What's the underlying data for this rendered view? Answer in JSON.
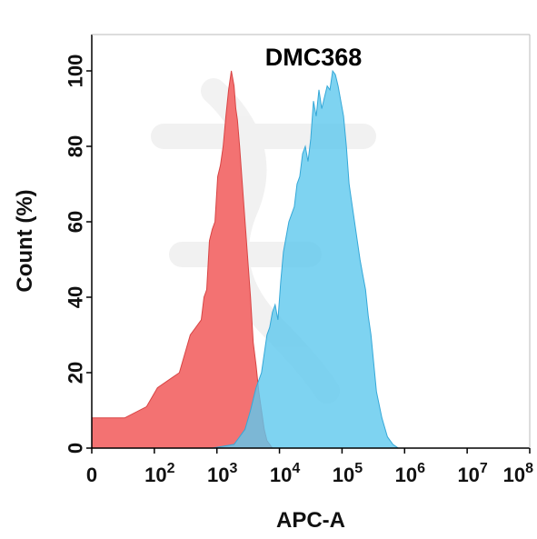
{
  "chart_data": {
    "type": "area",
    "title": "DMC368",
    "xlabel": "APC-A",
    "ylabel": "Count  (%)",
    "x_scale": "biexponential",
    "xlim_decades": [
      0,
      8
    ],
    "ylim": [
      0,
      100
    ],
    "grid": false,
    "legend": "none",
    "x_ticks": [
      {
        "base": "0",
        "exp": ""
      },
      {
        "base": "10",
        "exp": "2"
      },
      {
        "base": "10",
        "exp": "3"
      },
      {
        "base": "10",
        "exp": "4"
      },
      {
        "base": "10",
        "exp": "5"
      },
      {
        "base": "10",
        "exp": "6"
      },
      {
        "base": "10",
        "exp": "7"
      },
      {
        "base": "10",
        "exp": "8"
      }
    ],
    "y_ticks": [
      "0",
      "20",
      "40",
      "60",
      "80",
      "100"
    ],
    "series": [
      {
        "color": "#f26a6a",
        "stroke": "#d84444",
        "x_log10": [
          0.0,
          0.6,
          1.0,
          1.2,
          1.4,
          1.6,
          1.8,
          1.9,
          2.0,
          2.05,
          2.1,
          2.15,
          2.2,
          2.25,
          2.3,
          2.35,
          2.4,
          2.45,
          2.5,
          2.55,
          2.6,
          2.63,
          2.66,
          2.7,
          2.75,
          2.8,
          2.85,
          2.9,
          2.95,
          3.0,
          3.05,
          3.1,
          3.15,
          3.2,
          3.3
        ],
        "y": [
          8,
          8,
          11,
          16,
          18,
          20,
          30,
          32,
          34,
          40,
          42,
          55,
          58,
          60,
          72,
          75,
          80,
          88,
          95,
          100,
          96,
          90,
          87,
          80,
          70,
          60,
          50,
          40,
          28,
          22,
          15,
          10,
          5,
          2,
          0
        ]
      },
      {
        "color": "#5ec8ee",
        "stroke": "#35a8d8",
        "x_log10": [
          2.2,
          2.6,
          2.8,
          2.9,
          3.0,
          3.1,
          3.2,
          3.25,
          3.3,
          3.35,
          3.4,
          3.45,
          3.5,
          3.55,
          3.6,
          3.65,
          3.7,
          3.75,
          3.8,
          3.85,
          3.9,
          3.95,
          4.0,
          4.05,
          4.1,
          4.15,
          4.2,
          4.25,
          4.3,
          4.35,
          4.4,
          4.45,
          4.5,
          4.55,
          4.6,
          4.65,
          4.7,
          4.75,
          4.8,
          4.85,
          4.9,
          4.95,
          5.0,
          5.05,
          5.1,
          5.2,
          5.3,
          5.4,
          5.5,
          5.6
        ],
        "y": [
          0,
          1,
          5,
          10,
          16,
          20,
          30,
          32,
          36,
          38,
          34,
          44,
          52,
          56,
          60,
          62,
          64,
          70,
          72,
          78,
          80,
          76,
          82,
          92,
          88,
          95,
          90,
          93,
          96,
          95,
          100,
          99,
          96,
          92,
          88,
          80,
          70,
          65,
          60,
          55,
          50,
          46,
          42,
          35,
          30,
          15,
          8,
          3,
          1,
          0
        ]
      }
    ]
  }
}
